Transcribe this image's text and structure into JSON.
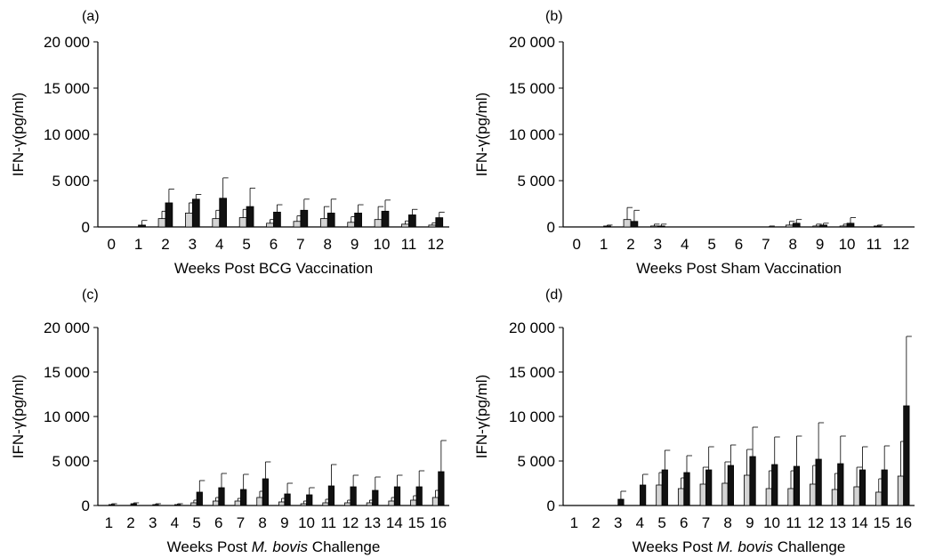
{
  "chart_data": [
    {
      "type": "bar",
      "panel_label": "(a)",
      "ylabel": "IFN-γ(pg/ml)",
      "xlabel": "Weeks Post BCG Vaccination",
      "xlabel_italic": "",
      "xlabel_suffix": "",
      "ylim": [
        0,
        20000
      ],
      "yticks": [
        0,
        5000,
        10000,
        15000,
        20000
      ],
      "ytick_labels": [
        "0",
        "5 000",
        "10 000",
        "15 000",
        "20 000"
      ],
      "categories": [
        "0",
        "1",
        "2",
        "3",
        "4",
        "5",
        "6",
        "7",
        "8",
        "9",
        "10",
        "11",
        "12"
      ],
      "series": [
        {
          "fill": "#d4d4d4",
          "values": [
            0,
            0,
            900,
            1500,
            900,
            1000,
            400,
            600,
            900,
            500,
            800,
            300,
            200
          ],
          "errors": [
            0,
            0,
            800,
            1100,
            900,
            900,
            400,
            600,
            1300,
            600,
            1400,
            350,
            250
          ]
        },
        {
          "fill": "#111111",
          "values": [
            0,
            200,
            2600,
            3000,
            3100,
            2200,
            1600,
            1800,
            1500,
            1500,
            1700,
            1300,
            1000
          ],
          "errors": [
            0,
            500,
            1500,
            500,
            2200,
            2000,
            800,
            1200,
            1500,
            900,
            1200,
            600,
            600
          ]
        }
      ]
    },
    {
      "type": "bar",
      "panel_label": "(b)",
      "ylabel": "IFN-γ(pg/ml)",
      "xlabel": "Weeks Post Sham Vaccination",
      "xlabel_italic": "",
      "xlabel_suffix": "",
      "ylim": [
        0,
        20000
      ],
      "yticks": [
        0,
        5000,
        10000,
        15000,
        20000
      ],
      "ytick_labels": [
        "0",
        "5 000",
        "10 000",
        "15 000",
        "20 000"
      ],
      "categories": [
        "0",
        "1",
        "2",
        "3",
        "4",
        "5",
        "6",
        "7",
        "8",
        "9",
        "10",
        "11",
        "12"
      ],
      "series": [
        {
          "fill": "#d4d4d4",
          "values": [
            0,
            0,
            800,
            100,
            0,
            0,
            0,
            0,
            200,
            100,
            100,
            0,
            0
          ],
          "errors": [
            0,
            0,
            1300,
            200,
            0,
            0,
            0,
            0,
            400,
            200,
            200,
            0,
            0
          ]
        },
        {
          "fill": "#111111",
          "values": [
            0,
            100,
            600,
            100,
            0,
            0,
            0,
            0,
            400,
            200,
            400,
            100,
            0
          ],
          "errors": [
            0,
            100,
            1200,
            200,
            0,
            0,
            0,
            100,
            400,
            200,
            600,
            100,
            0
          ]
        }
      ]
    },
    {
      "type": "bar",
      "panel_label": "(c)",
      "ylabel": "IFN-γ(pg/ml)",
      "xlabel": "Weeks Post ",
      "xlabel_italic": "M. bovis",
      "xlabel_suffix": " Challenge",
      "ylim": [
        0,
        20000
      ],
      "yticks": [
        0,
        5000,
        10000,
        15000,
        20000
      ],
      "ytick_labels": [
        "0",
        "5 000",
        "10 000",
        "15 000",
        "20 000"
      ],
      "categories": [
        "1",
        "2",
        "3",
        "4",
        "5",
        "6",
        "7",
        "8",
        "9",
        "10",
        "11",
        "12",
        "13",
        "14",
        "15",
        "16"
      ],
      "series": [
        {
          "fill": "#d4d4d4",
          "values": [
            0,
            0,
            0,
            0,
            300,
            500,
            500,
            900,
            400,
            200,
            300,
            300,
            300,
            500,
            600,
            900
          ],
          "errors": [
            0,
            0,
            0,
            0,
            300,
            400,
            300,
            700,
            400,
            300,
            400,
            300,
            300,
            400,
            500,
            800
          ]
        },
        {
          "fill": "#111111",
          "values": [
            100,
            200,
            100,
            100,
            1500,
            2000,
            1800,
            3000,
            1300,
            1200,
            2200,
            2100,
            1700,
            2100,
            2100,
            3800
          ],
          "errors": [
            100,
            100,
            100,
            100,
            1300,
            1600,
            1700,
            1900,
            1200,
            800,
            2400,
            1300,
            1500,
            1300,
            1800,
            3500
          ]
        }
      ]
    },
    {
      "type": "bar",
      "panel_label": "(d)",
      "ylabel": "IFN-γ(pg/ml)",
      "xlabel": "Weeks Post ",
      "xlabel_italic": "M. bovis",
      "xlabel_suffix": " Challenge",
      "ylim": [
        0,
        20000
      ],
      "yticks": [
        0,
        5000,
        10000,
        15000,
        20000
      ],
      "ytick_labels": [
        "0",
        "5 000",
        "10 000",
        "15 000",
        "20 000"
      ],
      "categories": [
        "1",
        "2",
        "3",
        "4",
        "5",
        "6",
        "7",
        "8",
        "9",
        "10",
        "11",
        "12",
        "13",
        "14",
        "15",
        "16"
      ],
      "series": [
        {
          "fill": "#d4d4d4",
          "values": [
            0,
            0,
            0,
            0,
            2300,
            1900,
            2400,
            2500,
            3400,
            1900,
            1900,
            2400,
            1800,
            2100,
            1500,
            3300
          ],
          "errors": [
            0,
            0,
            0,
            0,
            1400,
            1200,
            1900,
            2400,
            2900,
            2000,
            2000,
            2100,
            1800,
            2200,
            1500,
            3900
          ]
        },
        {
          "fill": "#111111",
          "values": [
            0,
            0,
            700,
            2300,
            4000,
            3700,
            4000,
            4500,
            5500,
            4600,
            4400,
            5200,
            4700,
            4000,
            4000,
            11200
          ],
          "errors": [
            0,
            0,
            900,
            1200,
            2200,
            1900,
            2600,
            2300,
            3300,
            3100,
            3400,
            4100,
            3100,
            2600,
            2700,
            7800
          ]
        }
      ]
    }
  ]
}
